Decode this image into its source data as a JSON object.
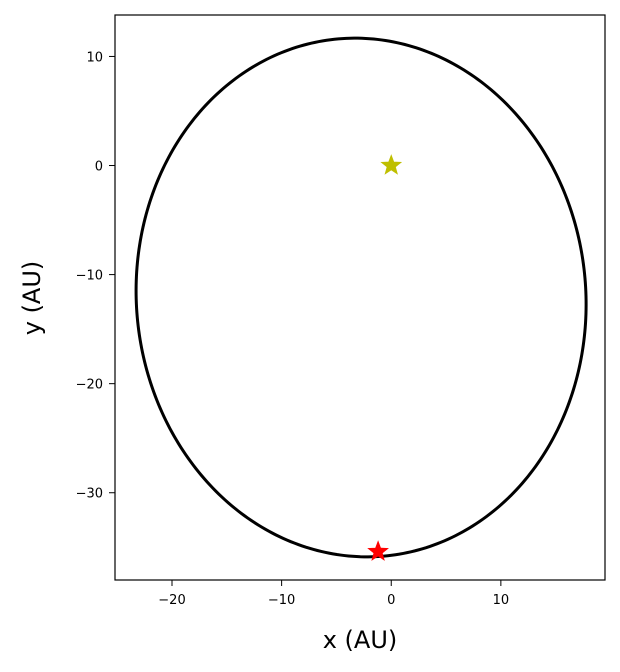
{
  "chart_data": {
    "type": "scatter",
    "title": "",
    "xlabel": "x (AU)",
    "ylabel": "y (AU)",
    "xlim": [
      -25.2,
      19.5
    ],
    "ylim": [
      -38.0,
      13.8
    ],
    "grid": false,
    "xticks": [
      -20,
      -10,
      0,
      10
    ],
    "yticks": [
      10,
      0,
      -10,
      -20,
      -30
    ],
    "xtick_labels": [
      "−20",
      "−10",
      "0",
      "10"
    ],
    "ytick_labels": [
      "10",
      "0",
      "−10",
      "−20",
      "−30"
    ],
    "orbit": {
      "center": [
        -2.75,
        -12.1
      ],
      "semi_axes": [
        20.5,
        23.8
      ],
      "rotation_deg": 5,
      "color": "#000000"
    },
    "markers": [
      {
        "x": 0,
        "y": 0,
        "marker": "star",
        "color": "#bfbf00"
      },
      {
        "x": -1.2,
        "y": -35.4,
        "marker": "star",
        "color": "#ff0000"
      }
    ]
  }
}
